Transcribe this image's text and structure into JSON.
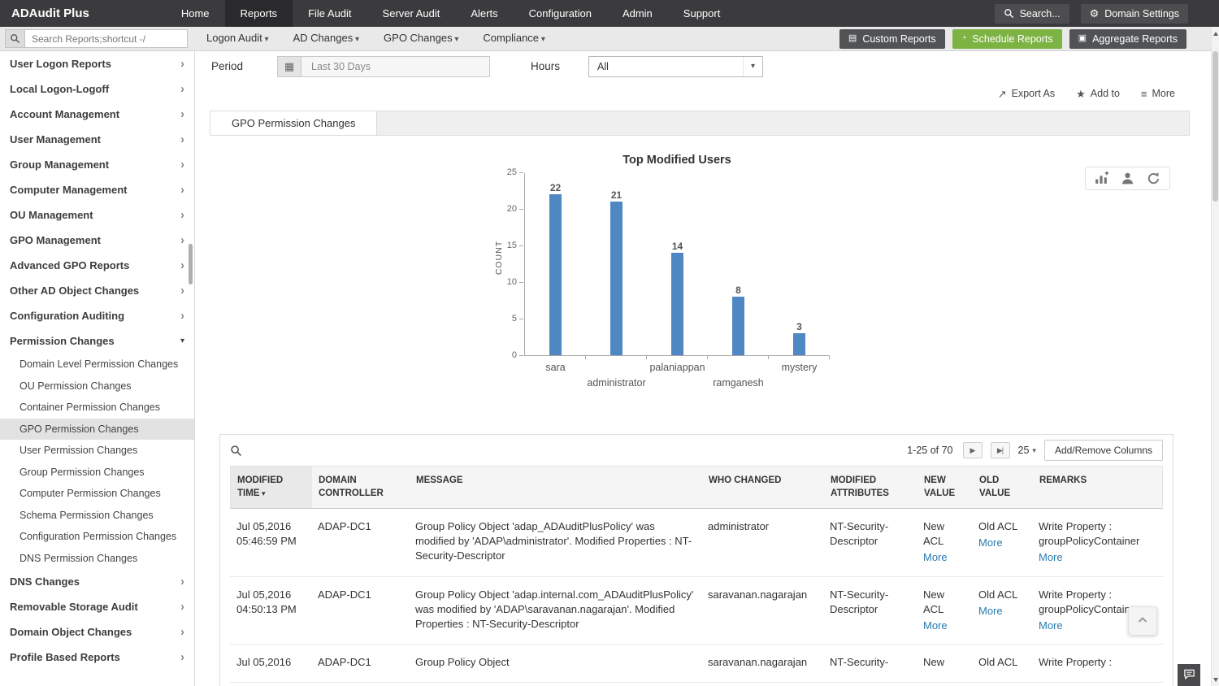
{
  "topbar": {
    "logo": "ADAudit Plus",
    "nav": [
      {
        "label": "Home"
      },
      {
        "label": "Reports",
        "active": true
      },
      {
        "label": "File Audit"
      },
      {
        "label": "Server Audit"
      },
      {
        "label": "Alerts"
      },
      {
        "label": "Configuration"
      },
      {
        "label": "Admin"
      },
      {
        "label": "Support"
      }
    ],
    "search_label": "Search...",
    "domain_settings_label": "Domain Settings"
  },
  "toolbar": {
    "search_placeholder": "Search Reports;shortcut -/",
    "menus": [
      {
        "label": "Logon Audit"
      },
      {
        "label": "AD Changes"
      },
      {
        "label": "GPO Changes"
      },
      {
        "label": "Compliance"
      }
    ],
    "buttons": [
      {
        "label": "Custom Reports",
        "icon": "▤",
        "accent": false
      },
      {
        "label": "Schedule Reports",
        "icon": "◔",
        "accent": true
      },
      {
        "label": "Aggregate Reports",
        "icon": "▣",
        "accent": false
      }
    ]
  },
  "sidebar": {
    "items_top": [
      {
        "label": "User Logon Reports"
      },
      {
        "label": "Local Logon-Logoff"
      },
      {
        "label": "Account Management"
      },
      {
        "label": "User Management"
      },
      {
        "label": "Group Management"
      },
      {
        "label": "Computer Management"
      },
      {
        "label": "OU Management"
      },
      {
        "label": "GPO Management"
      },
      {
        "label": "Advanced GPO Reports"
      },
      {
        "label": "Other AD Object Changes"
      },
      {
        "label": "Configuration Auditing"
      }
    ],
    "expanded_group": {
      "label": "Permission Changes",
      "children": [
        {
          "label": "Domain Level Permission Changes"
        },
        {
          "label": "OU Permission Changes"
        },
        {
          "label": "Container Permission Changes"
        },
        {
          "label": "GPO Permission Changes",
          "selected": true
        },
        {
          "label": "User Permission Changes"
        },
        {
          "label": "Group Permission Changes"
        },
        {
          "label": "Computer Permission Changes"
        },
        {
          "label": "Schema Permission Changes"
        },
        {
          "label": "Configuration Permission Changes"
        },
        {
          "label": "DNS Permission Changes"
        }
      ]
    },
    "items_bottom": [
      {
        "label": "DNS Changes"
      },
      {
        "label": "Removable Storage Audit"
      },
      {
        "label": "Domain Object Changes"
      },
      {
        "label": "Profile Based Reports"
      }
    ]
  },
  "filters": {
    "period_label": "Period",
    "period_value": "Last 30 Days",
    "hours_label": "Hours",
    "hours_value": "All"
  },
  "actions": {
    "export_label": "Export As",
    "add_to_label": "Add to",
    "more_label": "More"
  },
  "report": {
    "tab_label": "GPO Permission Changes"
  },
  "chart_data": {
    "type": "bar",
    "title": "Top Modified Users",
    "categories": [
      "sara",
      "administrator",
      "palaniappan",
      "ramganesh",
      "mystery"
    ],
    "values": [
      22,
      21,
      14,
      8,
      3
    ],
    "xlabel": "",
    "ylabel": "COUNT",
    "ylim": [
      0,
      25
    ],
    "yticks": [
      0,
      5,
      10,
      15,
      20,
      25
    ],
    "bar_color": "#4e87c2",
    "grid": false,
    "legend": "none"
  },
  "table": {
    "pagination": {
      "range": "1-25 of 70",
      "page_size": "25"
    },
    "add_remove_columns_label": "Add/Remove Columns",
    "headers": [
      {
        "label": "MODIFIED TIME",
        "col": "time",
        "sorted": true
      },
      {
        "label": "DOMAIN CONTROLLER",
        "col": "dc"
      },
      {
        "label": "MESSAGE",
        "col": "msg"
      },
      {
        "label": "WHO CHANGED",
        "col": "who"
      },
      {
        "label": "MODIFIED ATTRIBUTES",
        "col": "attrs"
      },
      {
        "label": "NEW VALUE",
        "col": "new"
      },
      {
        "label": "OLD VALUE",
        "col": "old"
      },
      {
        "label": "REMARKS",
        "col": "remarks"
      }
    ],
    "rows": [
      {
        "time": "Jul 05,2016 05:46:59 PM",
        "dc": "ADAP-DC1",
        "message": "Group Policy Object 'adap_ADAuditPlusPolicy' was modified by 'ADAP\\administrator'. Modified Properties : NT-Security-Descriptor",
        "who": "administrator",
        "attrs": "NT-Security-Descriptor",
        "new_value": "New ACL",
        "new_more": "More",
        "old_value": "Old ACL",
        "old_more": "More",
        "remarks": "Write Property : groupPolicyContainer",
        "remarks_more": "More"
      },
      {
        "time": "Jul 05,2016 04:50:13 PM",
        "dc": "ADAP-DC1",
        "message": "Group Policy Object 'adap.internal.com_ADAuditPlusPolicy' was modified by 'ADAP\\saravanan.nagarajan'. Modified Properties : NT-Security-Descriptor",
        "who": "saravanan.nagarajan",
        "attrs": "NT-Security-Descriptor",
        "new_value": "New ACL",
        "new_more": "More",
        "old_value": "Old ACL",
        "old_more": "More",
        "remarks": "Write Property : groupPolicyContainer",
        "remarks_more": "More"
      },
      {
        "time": "Jul 05,2016",
        "dc": "ADAP-DC1",
        "message": "Group Policy Object",
        "who": "saravanan.nagarajan",
        "attrs": "NT-Security-",
        "new_value": "New",
        "new_more": "",
        "old_value": "Old ACL",
        "old_more": "",
        "remarks": "Write Property :",
        "remarks_more": ""
      }
    ]
  },
  "icons": {
    "gear": "⚙",
    "calendar": "▦",
    "dropdown_caret": "▾",
    "export": "↗",
    "star": "★",
    "more": "≡",
    "next_page": "▶",
    "last_page": "▶|"
  }
}
